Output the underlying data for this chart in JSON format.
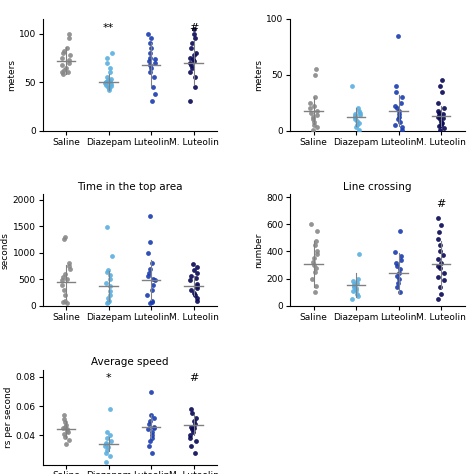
{
  "categories": [
    "Saline",
    "Diazepam",
    "Luteolin",
    "M. Luteolin"
  ],
  "colors": [
    "#888888",
    "#5aafe0",
    "#1a3db0",
    "#080855"
  ],
  "panel1": {
    "ylabel": "meters",
    "ylim": [
      0,
      115
    ],
    "yticks": [
      0,
      50,
      100
    ],
    "annot": [
      {
        "x": 1,
        "text": "**"
      },
      {
        "x": 3,
        "text": "#"
      }
    ],
    "means": [
      72,
      50,
      68,
      70
    ],
    "sds": [
      14,
      8,
      22,
      22
    ],
    "data": [
      [
        58,
        60,
        62,
        65,
        68,
        70,
        73,
        75,
        78,
        80,
        82,
        85,
        95,
        100,
        60
      ],
      [
        42,
        44,
        45,
        46,
        47,
        48,
        49,
        50,
        50,
        50,
        51,
        52,
        53,
        55,
        60,
        65,
        70,
        75,
        80
      ],
      [
        30,
        38,
        45,
        55,
        60,
        65,
        68,
        70,
        72,
        74,
        75,
        80,
        85,
        90,
        95,
        100
      ],
      [
        30,
        45,
        55,
        60,
        65,
        68,
        70,
        72,
        74,
        75,
        78,
        80,
        85,
        90,
        95,
        100,
        105
      ]
    ]
  },
  "panel2": {
    "ylabel": "meters",
    "ylim": [
      0,
      100
    ],
    "yticks": [
      0,
      50,
      100
    ],
    "annot": [],
    "means": [
      18,
      12,
      18,
      13
    ],
    "sds": [
      12,
      8,
      14,
      9
    ],
    "data": [
      [
        1,
        3,
        5,
        8,
        10,
        12,
        14,
        16,
        18,
        20,
        22,
        25,
        30,
        50,
        55
      ],
      [
        1,
        3,
        5,
        7,
        9,
        10,
        12,
        13,
        14,
        15,
        16,
        18,
        20,
        40
      ],
      [
        1,
        3,
        5,
        8,
        10,
        12,
        15,
        18,
        20,
        22,
        25,
        30,
        35,
        40,
        85
      ],
      [
        1,
        2,
        4,
        5,
        7,
        8,
        10,
        11,
        12,
        13,
        14,
        15,
        16,
        18,
        20,
        25,
        35,
        40,
        45
      ]
    ]
  },
  "panel3": {
    "title": "Time in the top area",
    "ylabel": "seconds",
    "ylim": [
      0,
      2100
    ],
    "yticks": [
      0,
      500,
      1000,
      1500,
      2000
    ],
    "annot": [],
    "means": [
      450,
      380,
      490,
      380
    ],
    "sds": [
      320,
      280,
      380,
      180
    ],
    "data": [
      [
        50,
        80,
        100,
        200,
        300,
        400,
        480,
        500,
        550,
        600,
        700,
        750,
        800,
        1250,
        1300
      ],
      [
        50,
        70,
        100,
        150,
        200,
        280,
        380,
        430,
        500,
        580,
        640,
        680,
        940,
        1480
      ],
      [
        50,
        80,
        100,
        200,
        300,
        400,
        480,
        500,
        560,
        620,
        700,
        800,
        1000,
        1200,
        1700
      ],
      [
        100,
        150,
        200,
        250,
        300,
        340,
        380,
        420,
        480,
        520,
        560,
        620,
        680,
        730,
        790
      ]
    ]
  },
  "panel4": {
    "title": "Line crossing",
    "ylabel": "number",
    "ylim": [
      0,
      820
    ],
    "yticks": [
      0,
      200,
      400,
      600,
      800
    ],
    "annot": [
      {
        "x": 3,
        "text": "#"
      }
    ],
    "means": [
      310,
      155,
      240,
      305
    ],
    "sds": [
      170,
      90,
      150,
      175
    ],
    "data": [
      [
        100,
        150,
        200,
        250,
        280,
        300,
        320,
        350,
        380,
        400,
        450,
        480,
        550,
        600
      ],
      [
        50,
        70,
        90,
        110,
        120,
        130,
        140,
        150,
        160,
        170,
        180,
        200,
        380
      ],
      [
        100,
        140,
        170,
        200,
        220,
        240,
        270,
        295,
        315,
        340,
        370,
        395,
        550
      ],
      [
        50,
        90,
        140,
        190,
        215,
        245,
        275,
        295,
        315,
        345,
        375,
        400,
        445,
        495,
        545,
        595,
        645
      ]
    ]
  },
  "panel5": {
    "title": "Average speed",
    "ylabel": "rs per second",
    "ylim": [
      0.02,
      0.085
    ],
    "yticks": [
      0.04,
      0.06,
      0.08
    ],
    "annot": [
      {
        "x": 1,
        "text": "*"
      },
      {
        "x": 3,
        "text": "#"
      }
    ],
    "means": [
      0.044,
      0.034,
      0.046,
      0.047
    ],
    "sds": [
      0.006,
      0.005,
      0.008,
      0.007
    ],
    "data": [
      [
        0.034,
        0.037,
        0.039,
        0.041,
        0.042,
        0.043,
        0.044,
        0.045,
        0.046,
        0.047,
        0.049,
        0.051,
        0.054
      ],
      [
        0.022,
        0.026,
        0.028,
        0.03,
        0.032,
        0.033,
        0.034,
        0.035,
        0.036,
        0.038,
        0.04,
        0.042,
        0.058
      ],
      [
        0.028,
        0.033,
        0.036,
        0.038,
        0.04,
        0.042,
        0.044,
        0.045,
        0.046,
        0.048,
        0.05,
        0.052,
        0.054,
        0.07
      ],
      [
        0.028,
        0.033,
        0.036,
        0.038,
        0.04,
        0.042,
        0.044,
        0.045,
        0.046,
        0.048,
        0.05,
        0.052,
        0.055,
        0.058
      ]
    ]
  }
}
